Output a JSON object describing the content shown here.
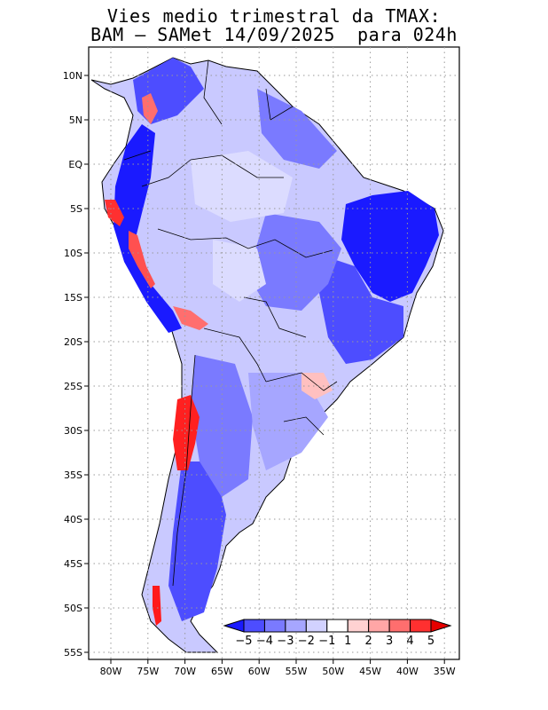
{
  "title_line1": "Vies medio trimestral da TMAX:",
  "title_line2": "BAM – SAMet 14/09/2025  para 024h",
  "map": {
    "lon_labels": [
      "80W",
      "75W",
      "70W",
      "65W",
      "60W",
      "55W",
      "50W",
      "45W",
      "40W",
      "35W"
    ],
    "lat_labels": [
      "10N",
      "5N",
      "EQ",
      "5S",
      "10S",
      "15S",
      "20S",
      "25S",
      "30S",
      "35S",
      "40S",
      "45S",
      "50S",
      "55S"
    ],
    "grid": "dotted"
  },
  "colorbar": {
    "labels": [
      "−5",
      "−4",
      "−3",
      "−2",
      "−1",
      "1",
      "2",
      "3",
      "4",
      "5"
    ],
    "colors": [
      "#1a1aff",
      "#4d4dff",
      "#7a7aff",
      "#a6a6ff",
      "#d2d2ff",
      "#ffffff",
      "#ffd2d2",
      "#ffa6a6",
      "#ff6e6e",
      "#ff3030",
      "#e60000"
    ]
  }
}
